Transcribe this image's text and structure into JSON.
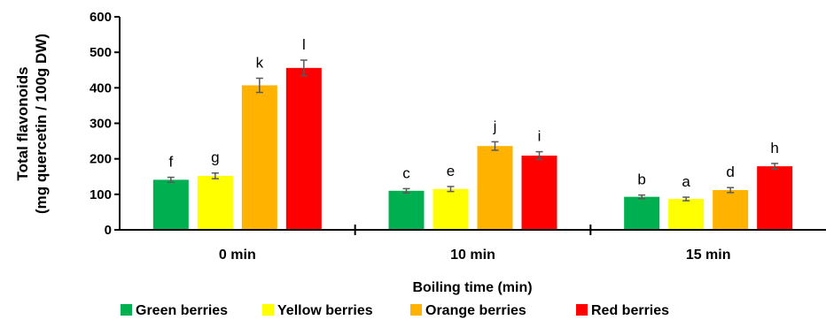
{
  "chart_data": {
    "type": "bar",
    "ylabel_line1": "Total flavonoids",
    "ylabel_line2": "(mg quercetin / 100g DW)",
    "xlabel": "Boiling time (min)",
    "ylim": [
      0,
      600
    ],
    "yticks": [
      "0",
      "100",
      "200",
      "300",
      "400",
      "500",
      "600"
    ],
    "categories": [
      "0 min",
      "10 min",
      "15 min"
    ],
    "legend_position": "bottom",
    "grid": false,
    "series": [
      {
        "name": "Green berries",
        "color": "#00B050",
        "values": [
          141,
          110,
          93
        ],
        "errors": [
          7,
          6,
          5
        ],
        "letters": [
          "f",
          "c",
          "b"
        ]
      },
      {
        "name": "Yellow berries",
        "color": "#FFFF00",
        "values": [
          152,
          115,
          87
        ],
        "errors": [
          8,
          7,
          5
        ],
        "letters": [
          "g",
          "e",
          "a"
        ]
      },
      {
        "name": "Orange berries",
        "color": "#FFB300",
        "values": [
          407,
          236,
          112
        ],
        "errors": [
          20,
          12,
          7
        ],
        "letters": [
          "k",
          "j",
          "d"
        ]
      },
      {
        "name": "Red berries",
        "color": "#FF0000",
        "values": [
          456,
          209,
          179
        ],
        "errors": [
          22,
          11,
          8
        ],
        "letters": [
          "l",
          "i",
          "h"
        ]
      }
    ]
  }
}
